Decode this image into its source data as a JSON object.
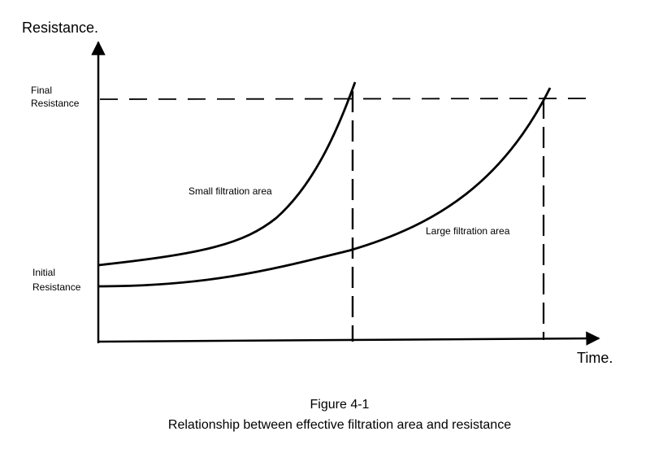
{
  "figure": {
    "y_axis_label": "Resistance.",
    "x_axis_label": "Time.",
    "final_resistance_label": [
      "Final",
      "Resistance"
    ],
    "initial_resistance_label": [
      "Initial",
      "Resistance"
    ],
    "small_area_label": "Small filtration area",
    "large_area_label": "Large filtration area"
  },
  "caption": {
    "title": "Figure 4-1",
    "subtitle": "Relationship between effective filtration area and resistance"
  },
  "colors": {
    "ink": "#000000",
    "background": "#ffffff"
  }
}
